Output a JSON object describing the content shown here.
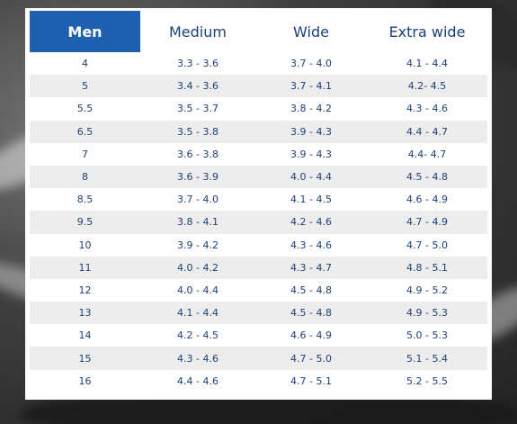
{
  "table": {
    "headers": [
      "Men",
      "Medium",
      "Wide",
      "Extra wide"
    ],
    "rows": [
      [
        "4",
        "3.3 - 3.6",
        "3.7 - 4.0",
        "4.1 - 4.4"
      ],
      [
        "5",
        "3.4 - 3.6",
        "3.7 - 4.1",
        "4.2- 4.5"
      ],
      [
        "5.5",
        "3.5 - 3.7",
        "3.8 - 4.2",
        "4.3 - 4.6"
      ],
      [
        "6.5",
        "3.5 - 3.8",
        "3.9 - 4.3",
        "4.4 - 4.7"
      ],
      [
        "7",
        "3.6 - 3.8",
        "3.9 - 4.3",
        "4.4- 4.7"
      ],
      [
        "8",
        "3.6 - 3.9",
        "4.0 - 4.4",
        "4.5 - 4.8"
      ],
      [
        "8.5",
        "3.7 - 4.0",
        "4.1 - 4.5",
        "4.6 - 4.9"
      ],
      [
        "9.5",
        "3.8 - 4.1",
        "4.2 - 4.6",
        "4.7 - 4.9"
      ],
      [
        "10",
        "3.9 - 4.2",
        "4.3 - 4.6",
        "4.7 - 5.0"
      ],
      [
        "11",
        "4.0 - 4.2",
        "4.3 - 4.7",
        "4.8 - 5.1"
      ],
      [
        "12",
        "4.0 - 4.4",
        "4.5 - 4.8",
        "4.9 - 5.2"
      ],
      [
        "13",
        "4.1 - 4.4",
        "4.5 - 4.8",
        "4.9 - 5.3"
      ],
      [
        "14",
        "4.2 - 4.5",
        "4.6 - 4.9",
        "5.0 - 5.3"
      ],
      [
        "15",
        "4.3 - 4.6",
        "4.7 - 5.0",
        "5.1 - 5.4"
      ],
      [
        "16",
        "4.4 - 4.6",
        "4.7 - 5.1",
        "5.2 - 5.5"
      ]
    ]
  },
  "colors": {
    "header_highlight": "#1f5fb0",
    "text": "#1d3f78",
    "row_stripe": "#ededed"
  }
}
